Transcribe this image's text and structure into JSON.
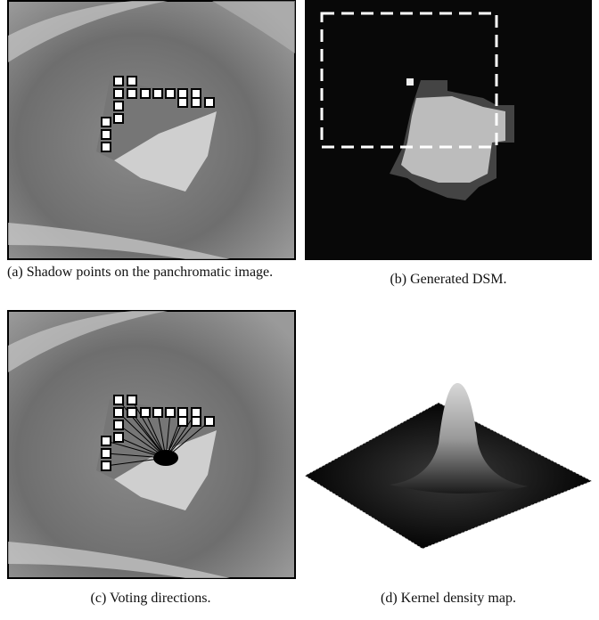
{
  "panels": [
    {
      "caption": "(a) Shadow points on the panchromatic image."
    },
    {
      "caption": "(b) Generated DSM."
    },
    {
      "caption": "(c) Voting directions."
    },
    {
      "caption": "(d) Kernel density map."
    }
  ]
}
